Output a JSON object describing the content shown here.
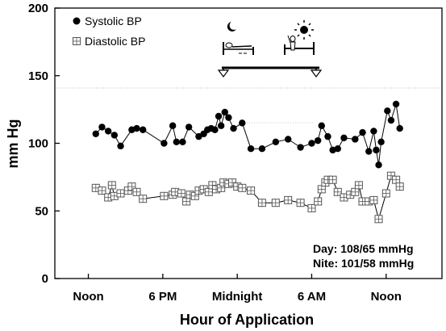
{
  "chart_data": {
    "type": "scatter",
    "title": "",
    "xlabel": "Hour of Application",
    "ylabel": "mm Hg",
    "ylim": [
      0,
      200
    ],
    "yticks": [
      0,
      50,
      100,
      150,
      200
    ],
    "x_unit": "hours after noon (Noon = 0, 6 PM = 6, Midnight = 12, 6 AM = 18, Noon = 24)",
    "xlim": [
      -2.7,
      28.5
    ],
    "xticks": [
      {
        "label": "Noon",
        "value": 0
      },
      {
        "label": "6 PM",
        "value": 6
      },
      {
        "label": "Midnight",
        "value": 12
      },
      {
        "label": "6 AM",
        "value": 18
      },
      {
        "label": "Noon",
        "value": 24
      }
    ],
    "legend_position": "top-left",
    "grid": false,
    "series": [
      {
        "name": "Systolic BP",
        "marker": "filled-circle",
        "color": "#000000",
        "x": [
          0.6,
          1.1,
          1.6,
          2.1,
          2.6,
          3.5,
          3.9,
          4.4,
          6.1,
          6.8,
          7.1,
          7.6,
          8.1,
          8.9,
          9.3,
          9.6,
          9.9,
          10.2,
          10.5,
          10.7,
          11.0,
          11.3,
          11.7,
          12.4,
          13.1,
          14.0,
          15.1,
          16.1,
          17.1,
          18.0,
          18.5,
          18.8,
          19.3,
          19.7,
          20.1,
          20.6,
          21.5,
          22.1,
          22.6,
          23.0,
          23.2,
          23.4,
          23.6,
          24.1,
          24.4,
          24.8,
          25.1
        ],
        "y": [
          107,
          112,
          109,
          106,
          98,
          110,
          111,
          110,
          100,
          113,
          101,
          101,
          112,
          105,
          107,
          110,
          111,
          110,
          120,
          113,
          123,
          119,
          111,
          115,
          96,
          96,
          101,
          103,
          97,
          100,
          102,
          113,
          105,
          95,
          96,
          104,
          103,
          108,
          94,
          109,
          95,
          84,
          101,
          124,
          117,
          129,
          111
        ]
      },
      {
        "name": "Diastolic BP",
        "marker": "hatched-square",
        "color": "#000000",
        "x": [
          0.6,
          1.1,
          1.6,
          1.9,
          2.1,
          2.6,
          3.2,
          3.5,
          3.9,
          4.4,
          6.1,
          6.8,
          7.0,
          7.5,
          7.9,
          8.2,
          8.6,
          8.9,
          9.3,
          9.7,
          10.0,
          10.3,
          10.7,
          10.9,
          11.3,
          11.6,
          12.0,
          12.4,
          13.1,
          14.0,
          15.1,
          16.1,
          17.1,
          18.0,
          18.5,
          18.8,
          19.1,
          19.3,
          19.7,
          20.1,
          20.6,
          21.1,
          21.5,
          21.8,
          22.1,
          22.6,
          23.0,
          23.4,
          24.0,
          24.4,
          24.8,
          25.1
        ],
        "y": [
          67,
          65,
          60,
          69,
          61,
          63,
          65,
          68,
          64,
          59,
          61,
          62,
          64,
          63,
          57,
          62,
          61,
          65,
          66,
          64,
          69,
          66,
          67,
          71,
          70,
          71,
          68,
          67,
          65,
          56,
          56,
          58,
          56,
          52,
          57,
          66,
          71,
          73,
          73,
          64,
          60,
          62,
          64,
          69,
          57,
          57,
          58,
          44,
          63,
          76,
          73,
          68
        ]
      }
    ],
    "annotations": [
      {
        "text": "Day: 108/65 mmHg"
      },
      {
        "text": "Nite: 101/58 mmHg"
      }
    ]
  }
}
